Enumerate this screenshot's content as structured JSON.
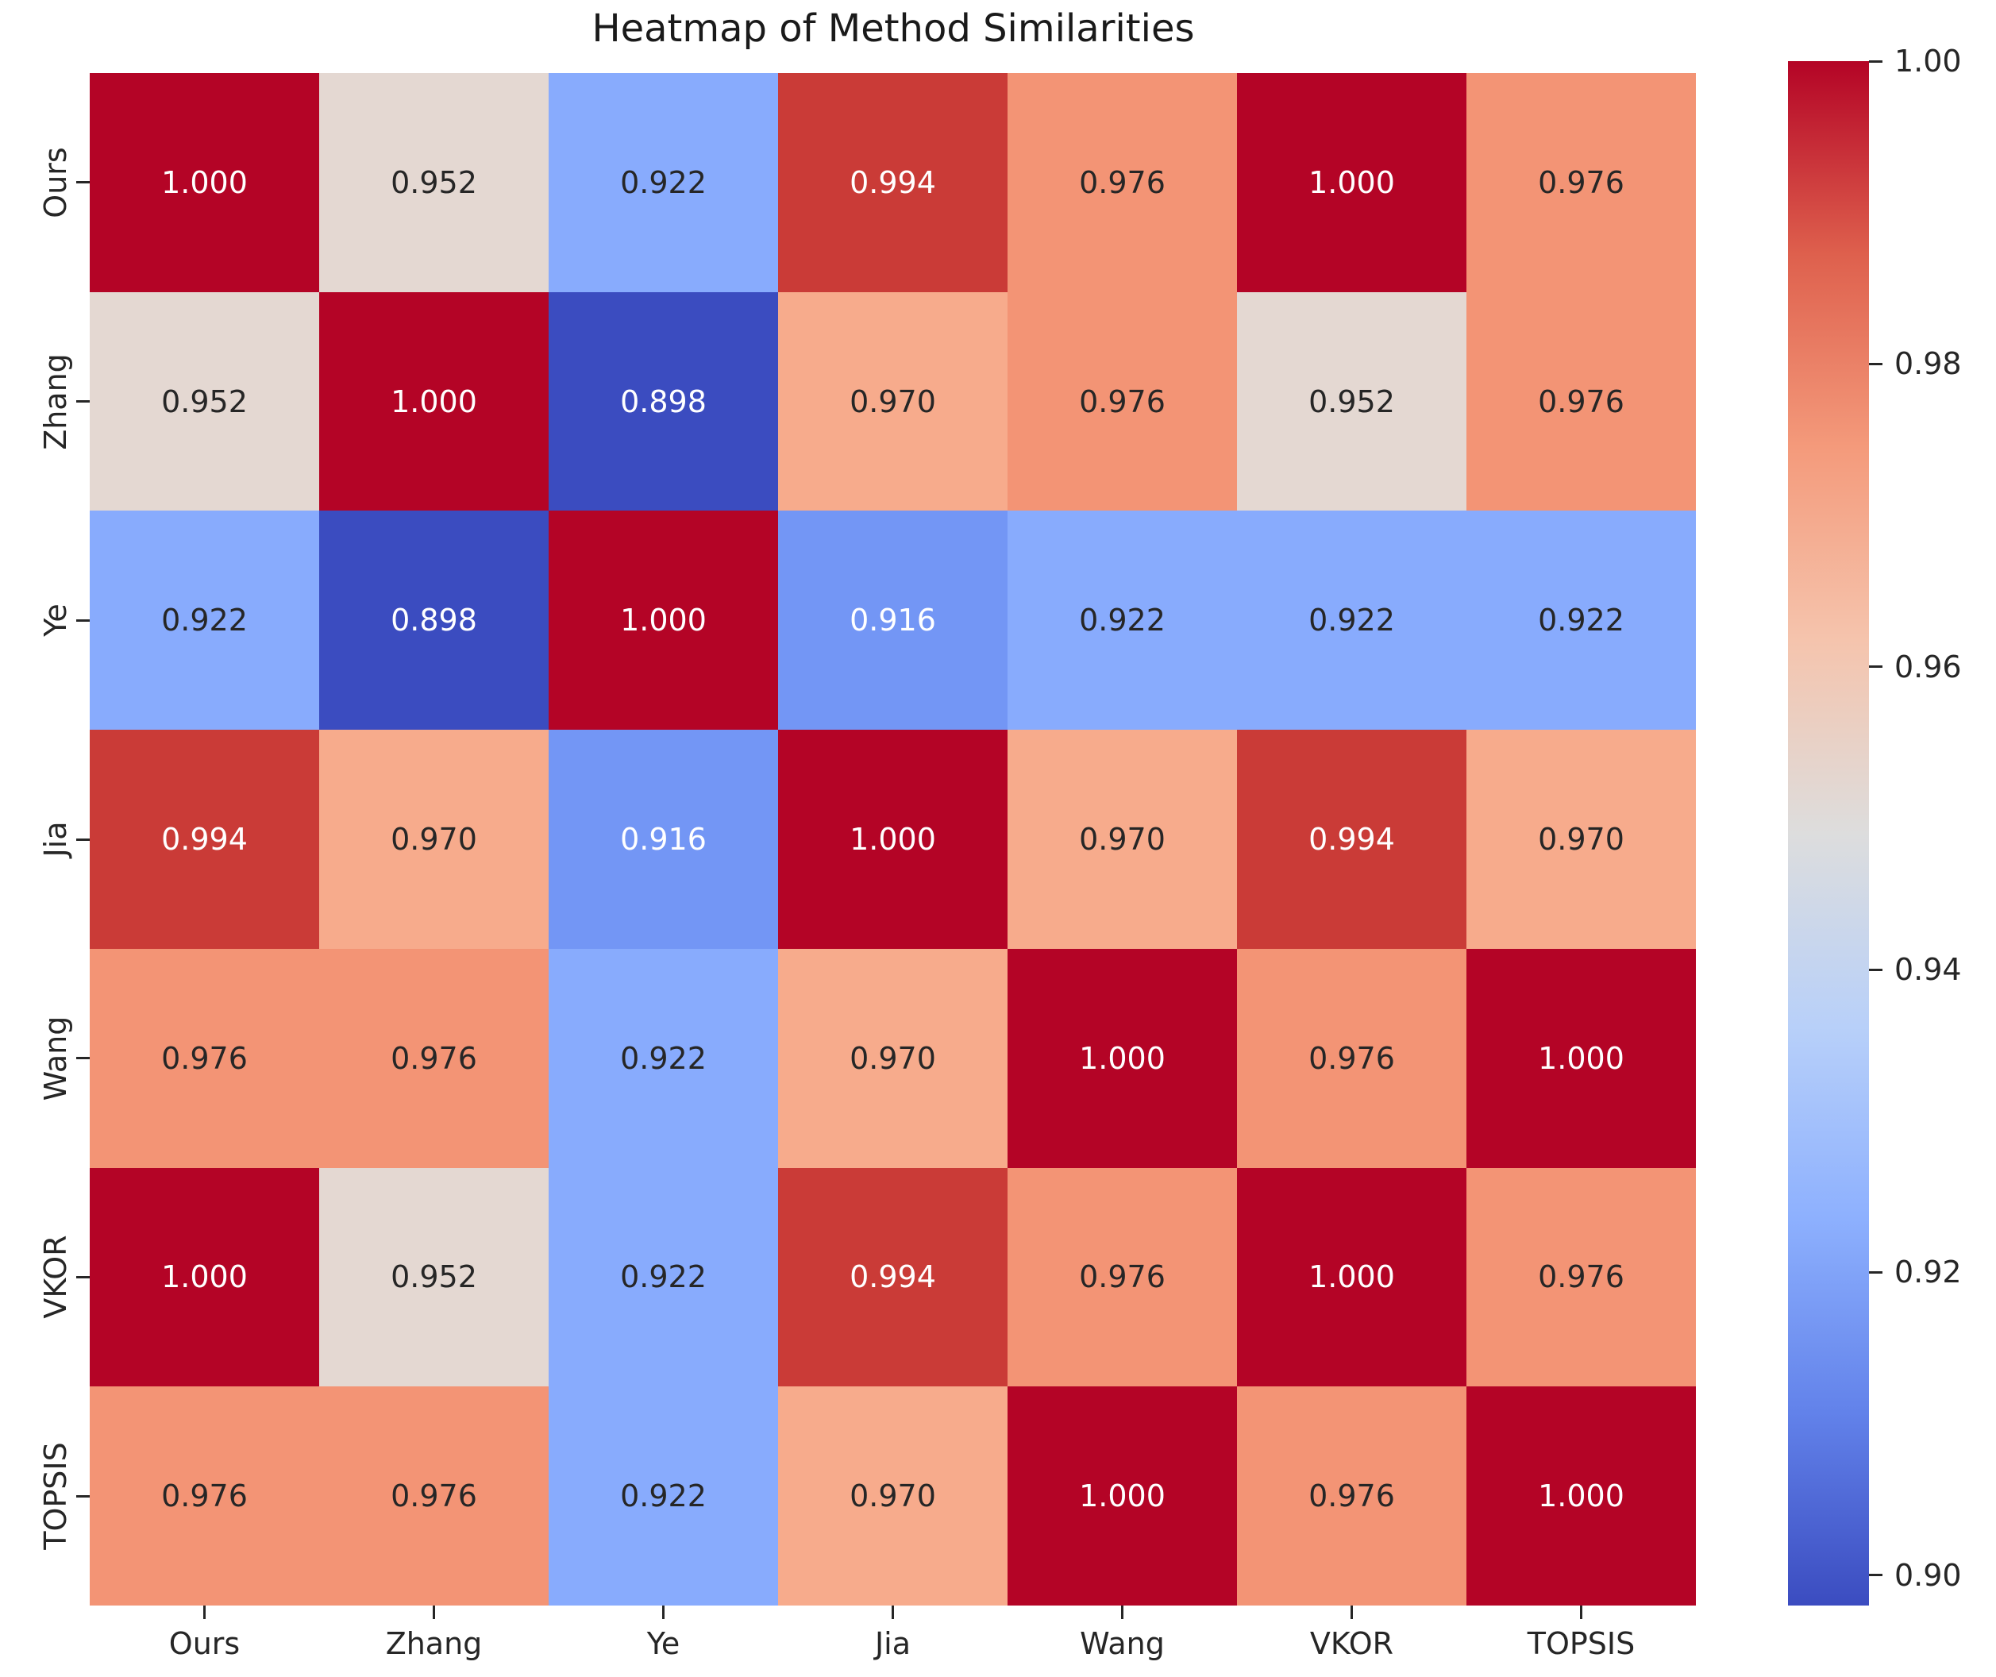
{
  "title": "Heatmap of Method Similarities",
  "colors": {
    "background": "#ffffff",
    "title_text": "#1a1a1a",
    "axis_text": "#262626",
    "tick_mark": "#262626",
    "annot_dark": "#262626",
    "annot_light": "#ffffff"
  },
  "chart_data": {
    "type": "heatmap",
    "title": "Heatmap of Method Similarities",
    "xlabel": "",
    "ylabel": "",
    "categories": [
      "Ours",
      "Zhang",
      "Ye",
      "Jia",
      "Wang",
      "VKOR",
      "TOPSIS"
    ],
    "x_tick_labels": [
      "Ours",
      "Zhang",
      "Ye",
      "Jia",
      "Wang",
      "VKOR",
      "TOPSIS"
    ],
    "y_tick_labels": [
      "Ours",
      "Zhang",
      "Ye",
      "Jia",
      "Wang",
      "VKOR",
      "TOPSIS"
    ],
    "matrix": [
      [
        1.0,
        0.952,
        0.922,
        0.994,
        0.976,
        1.0,
        0.976
      ],
      [
        0.952,
        1.0,
        0.898,
        0.97,
        0.976,
        0.952,
        0.976
      ],
      [
        0.922,
        0.898,
        1.0,
        0.916,
        0.922,
        0.922,
        0.922
      ],
      [
        0.994,
        0.97,
        0.916,
        1.0,
        0.97,
        0.994,
        0.97
      ],
      [
        0.976,
        0.976,
        0.922,
        0.97,
        1.0,
        0.976,
        1.0
      ],
      [
        1.0,
        0.952,
        0.922,
        0.994,
        0.976,
        1.0,
        0.976
      ],
      [
        0.976,
        0.976,
        0.922,
        0.97,
        1.0,
        0.976,
        1.0
      ]
    ],
    "value_format_decimals": 3,
    "vmin": 0.898,
    "vmax": 1.0,
    "colormap": "coolwarm",
    "grid": false,
    "value_styles": {
      "1.000": {
        "bg": "#b40426",
        "text": "#ffffff"
      },
      "0.994": {
        "bg": "#ca3b37",
        "text": "#ffffff"
      },
      "0.976": {
        "bg": "#f39475",
        "text": "#262626"
      },
      "0.970": {
        "bg": "#f7ab8c",
        "text": "#262626"
      },
      "0.952": {
        "bg": "#e4d8d2",
        "text": "#262626"
      },
      "0.922": {
        "bg": "#88abfd",
        "text": "#262626"
      },
      "0.916": {
        "bg": "#7396f5",
        "text": "#ffffff"
      },
      "0.898": {
        "bg": "#3b4cc0",
        "text": "#ffffff"
      }
    },
    "colorbar": {
      "position": "right",
      "tick_labels": [
        "1.00",
        "0.98",
        "0.96",
        "0.94",
        "0.92",
        "0.90"
      ],
      "tick_values": [
        1.0,
        0.98,
        0.96,
        0.94,
        0.92,
        0.9
      ],
      "gradient_stops": [
        {
          "pos": 0.0,
          "color": "#b40426"
        },
        {
          "pos": 0.125,
          "color": "#de604d"
        },
        {
          "pos": 0.25,
          "color": "#f49a7b"
        },
        {
          "pos": 0.375,
          "color": "#f5c4ad"
        },
        {
          "pos": 0.5,
          "color": "#dddddd"
        },
        {
          "pos": 0.625,
          "color": "#b8d0f9"
        },
        {
          "pos": 0.75,
          "color": "#8db0fe"
        },
        {
          "pos": 0.875,
          "color": "#6282ea"
        },
        {
          "pos": 1.0,
          "color": "#3b4cc0"
        }
      ]
    }
  }
}
